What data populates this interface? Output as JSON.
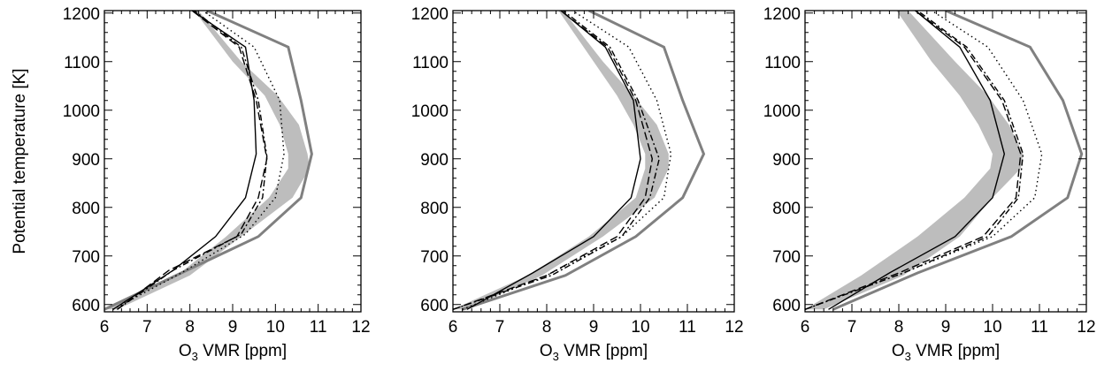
{
  "chart_data": [
    {
      "type": "line",
      "panel": 1,
      "xlabel_main": "O",
      "xlabel_sub": "3",
      "xlabel_rest": " VMR [ppm]",
      "ylabel": "Potential temperature [K]",
      "xlim": [
        6,
        12
      ],
      "ylim": [
        585,
        1205
      ],
      "xticks": [
        "6",
        "7",
        "8",
        "9",
        "10",
        "11",
        "12"
      ],
      "yticks": [
        "600",
        "700",
        "800",
        "900",
        "1000",
        "1100",
        "1200"
      ],
      "grid": false,
      "band": {
        "color": "#bdbdbd",
        "y": [
          590,
          660,
          740,
          820,
          880,
          910,
          970,
          1030,
          1100,
          1205
        ],
        "lower": [
          6.0,
          7.7,
          8.85,
          9.85,
          10.3,
          10.3,
          10.1,
          9.75,
          9.0,
          8.1
        ],
        "upper": [
          6.3,
          8.0,
          9.2,
          10.4,
          10.8,
          10.75,
          10.55,
          10.05,
          9.2,
          8.2
        ]
      },
      "series": [
        {
          "style": "solid-gray-thick",
          "color": "#808080",
          "x": [
            6.0,
            7.8,
            9.6,
            10.6,
            10.85,
            10.6,
            10.3,
            8.4
          ],
          "y": [
            590,
            665,
            740,
            820,
            910,
            1020,
            1130,
            1205
          ]
        },
        {
          "style": "solid-thin",
          "color": "#000000",
          "x": [
            6.2,
            7.6,
            8.6,
            9.3,
            9.55,
            9.5,
            9.3,
            8.05
          ],
          "y": [
            590,
            670,
            740,
            820,
            910,
            1020,
            1130,
            1205
          ]
        },
        {
          "style": "dashed",
          "color": "#000000",
          "x": [
            6.3,
            7.5,
            9.1,
            9.6,
            9.8,
            9.55,
            9.15,
            8.05
          ],
          "y": [
            590,
            670,
            740,
            820,
            900,
            1020,
            1130,
            1205
          ]
        },
        {
          "style": "dashdot",
          "color": "#000000",
          "x": [
            6.3,
            7.6,
            9.2,
            9.7,
            9.8,
            9.6,
            9.2,
            8.1
          ],
          "y": [
            590,
            670,
            745,
            820,
            905,
            1020,
            1130,
            1205
          ]
        },
        {
          "style": "dotted",
          "color": "#000000",
          "x": [
            6.2,
            7.8,
            9.3,
            10.0,
            10.2,
            10.1,
            9.5,
            8.3
          ],
          "y": [
            590,
            665,
            745,
            820,
            910,
            1020,
            1130,
            1205
          ]
        }
      ]
    },
    {
      "type": "line",
      "panel": 2,
      "xlabel_main": "O",
      "xlabel_sub": "3",
      "xlabel_rest": " VMR [ppm]",
      "ylabel": "",
      "xlim": [
        6,
        12
      ],
      "ylim": [
        585,
        1205
      ],
      "xticks": [
        "6",
        "7",
        "8",
        "9",
        "10",
        "11",
        "12"
      ],
      "yticks": [
        "600",
        "700",
        "800",
        "900",
        "1000",
        "1100",
        "1200"
      ],
      "grid": false,
      "band": {
        "color": "#bdbdbd",
        "y": [
          590,
          660,
          740,
          820,
          880,
          910,
          970,
          1030,
          1100,
          1205
        ],
        "lower": [
          6.0,
          7.6,
          8.9,
          9.9,
          10.1,
          10.1,
          9.85,
          9.5,
          9.0,
          8.25
        ],
        "upper": [
          6.3,
          7.9,
          9.2,
          10.3,
          10.6,
          10.6,
          10.35,
          9.85,
          9.2,
          8.35
        ]
      },
      "series": [
        {
          "style": "solid-gray-thick",
          "color": "#808080",
          "x": [
            6.2,
            8.4,
            9.9,
            10.9,
            11.35,
            10.9,
            10.5,
            8.9
          ],
          "y": [
            590,
            660,
            740,
            820,
            910,
            1020,
            1130,
            1205
          ]
        },
        {
          "style": "solid-thin",
          "color": "#000000",
          "x": [
            6.3,
            7.7,
            9.0,
            9.8,
            10.0,
            9.85,
            9.25,
            8.3
          ],
          "y": [
            590,
            665,
            740,
            820,
            900,
            1020,
            1130,
            1205
          ]
        },
        {
          "style": "dashed",
          "color": "#000000",
          "x": [
            6.0,
            8.0,
            9.5,
            10.1,
            10.25,
            9.9,
            9.3,
            8.3
          ],
          "y": [
            590,
            660,
            740,
            820,
            900,
            1020,
            1130,
            1205
          ]
        },
        {
          "style": "dashdot",
          "color": "#000000",
          "x": [
            6.0,
            8.1,
            9.6,
            10.2,
            10.4,
            9.95,
            9.35,
            8.35
          ],
          "y": [
            590,
            660,
            740,
            820,
            900,
            1020,
            1130,
            1205
          ]
        },
        {
          "style": "dotted",
          "color": "#000000",
          "x": [
            6.2,
            8.0,
            9.6,
            10.5,
            10.65,
            10.35,
            9.75,
            8.55
          ],
          "y": [
            590,
            660,
            740,
            820,
            910,
            1020,
            1130,
            1205
          ]
        }
      ]
    },
    {
      "type": "line",
      "panel": 3,
      "xlabel_main": "O",
      "xlabel_sub": "3",
      "xlabel_rest": " VMR [ppm]",
      "ylabel": "",
      "xlim": [
        6,
        12
      ],
      "ylim": [
        585,
        1205
      ],
      "xticks": [
        "6",
        "7",
        "8",
        "9",
        "10",
        "11",
        "12"
      ],
      "yticks": [
        "600",
        "700",
        "800",
        "900",
        "1000",
        "1100",
        "1200"
      ],
      "grid": false,
      "band": {
        "color": "#bdbdbd",
        "y": [
          590,
          660,
          740,
          820,
          880,
          910,
          970,
          1030,
          1100,
          1205
        ],
        "lower": [
          6.0,
          7.2,
          8.4,
          9.4,
          9.95,
          10.0,
          9.7,
          9.3,
          8.7,
          7.95
        ],
        "upper": [
          6.4,
          8.1,
          9.3,
          10.0,
          10.6,
          10.65,
          10.35,
          9.9,
          9.2,
          8.2
        ]
      },
      "series": [
        {
          "style": "solid-gray-thick",
          "color": "#808080",
          "x": [
            6.6,
            8.4,
            10.4,
            11.6,
            11.9,
            11.5,
            10.8,
            9.0
          ],
          "y": [
            590,
            665,
            740,
            820,
            910,
            1020,
            1130,
            1205
          ]
        },
        {
          "style": "solid-thin",
          "color": "#000000",
          "x": [
            6.5,
            7.8,
            9.2,
            10.0,
            10.25,
            9.95,
            9.3,
            8.35
          ],
          "y": [
            590,
            665,
            740,
            820,
            910,
            1020,
            1130,
            1205
          ]
        },
        {
          "style": "dashed",
          "color": "#000000",
          "x": [
            6.0,
            8.0,
            9.8,
            10.5,
            10.6,
            10.2,
            9.4,
            8.35
          ],
          "y": [
            590,
            665,
            740,
            820,
            910,
            1020,
            1130,
            1205
          ]
        },
        {
          "style": "dashdot",
          "color": "#000000",
          "x": [
            6.0,
            8.1,
            9.9,
            10.55,
            10.65,
            10.25,
            9.45,
            8.4
          ],
          "y": [
            590,
            665,
            740,
            820,
            910,
            1020,
            1130,
            1205
          ]
        },
        {
          "style": "dotted",
          "color": "#000000",
          "x": [
            6.0,
            8.1,
            10.0,
            10.9,
            11.05,
            10.65,
            9.9,
            8.7
          ],
          "y": [
            590,
            665,
            740,
            820,
            910,
            1020,
            1130,
            1205
          ]
        }
      ]
    }
  ]
}
